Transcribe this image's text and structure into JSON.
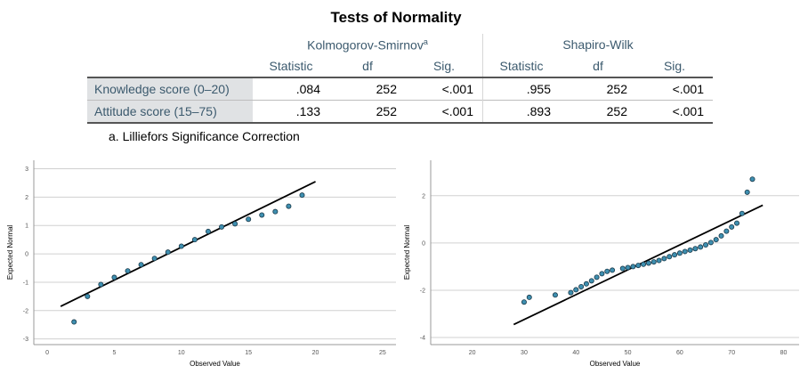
{
  "table": {
    "title": "Tests of Normality",
    "group1": "Kolmogorov-Smirnov",
    "group1_sup": "a",
    "group2": "Shapiro-Wilk",
    "col_headers": [
      "Statistic",
      "df",
      "Sig.",
      "Statistic",
      "df",
      "Sig."
    ],
    "rows": [
      {
        "label": "Knowledge score (0–20)",
        "values": [
          ".084",
          "252",
          "<.001",
          ".955",
          "252",
          "<.001"
        ]
      },
      {
        "label": "Attitude score (15–75)",
        "values": [
          ".133",
          "252",
          "<.001",
          ".893",
          "252",
          "<.001"
        ]
      }
    ],
    "footnote": "a. Lilliefors Significance Correction"
  },
  "chart_data": [
    {
      "type": "scatter",
      "xlabel": "Observed Value",
      "ylabel": "Expected Normal",
      "xlim": [
        -1,
        26
      ],
      "ylim": [
        -3.2,
        3.3
      ],
      "xticks": [
        0,
        5,
        10,
        15,
        20,
        25
      ],
      "yticks": [
        3,
        2,
        1,
        0,
        -1,
        -2,
        -3
      ],
      "grid": true,
      "points": [
        [
          2,
          -2.4
        ],
        [
          3,
          -1.5
        ],
        [
          4,
          -1.08
        ],
        [
          5,
          -0.83
        ],
        [
          6,
          -0.6
        ],
        [
          7,
          -0.38
        ],
        [
          8,
          -0.16
        ],
        [
          9,
          0.06
        ],
        [
          10,
          0.27
        ],
        [
          11,
          0.5
        ],
        [
          12,
          0.79
        ],
        [
          13,
          0.95
        ],
        [
          14,
          1.06
        ],
        [
          15,
          1.22
        ],
        [
          16,
          1.37
        ],
        [
          17,
          1.49
        ],
        [
          18,
          1.68
        ],
        [
          19,
          2.07
        ]
      ],
      "line": [
        [
          1,
          -1.85
        ],
        [
          20,
          2.55
        ]
      ],
      "point_color": "#3e8fb0"
    },
    {
      "type": "scatter",
      "xlabel": "Observed Value",
      "ylabel": "Expected Normal",
      "xlim": [
        12,
        83
      ],
      "ylim": [
        -4.3,
        3.5
      ],
      "xticks": [
        20,
        30,
        40,
        50,
        60,
        70,
        80
      ],
      "yticks": [
        2,
        0,
        -2,
        -4
      ],
      "grid": true,
      "points": [
        [
          30,
          -2.5
        ],
        [
          31,
          -2.3
        ],
        [
          36,
          -2.2
        ],
        [
          39,
          -2.1
        ],
        [
          40,
          -1.98
        ],
        [
          41,
          -1.85
        ],
        [
          42,
          -1.73
        ],
        [
          43,
          -1.6
        ],
        [
          44,
          -1.45
        ],
        [
          45,
          -1.3
        ],
        [
          46,
          -1.2
        ],
        [
          47,
          -1.15
        ],
        [
          49,
          -1.08
        ],
        [
          50,
          -1.04
        ],
        [
          51,
          -1.0
        ],
        [
          52,
          -0.95
        ],
        [
          53,
          -0.9
        ],
        [
          54,
          -0.85
        ],
        [
          55,
          -0.8
        ],
        [
          56,
          -0.74
        ],
        [
          57,
          -0.66
        ],
        [
          58,
          -0.58
        ],
        [
          59,
          -0.5
        ],
        [
          60,
          -0.43
        ],
        [
          61,
          -0.36
        ],
        [
          62,
          -0.3
        ],
        [
          63,
          -0.24
        ],
        [
          64,
          -0.17
        ],
        [
          65,
          -0.08
        ],
        [
          66,
          0.02
        ],
        [
          67,
          0.14
        ],
        [
          68,
          0.3
        ],
        [
          69,
          0.5
        ],
        [
          70,
          0.68
        ],
        [
          71,
          0.84
        ],
        [
          72,
          1.25
        ],
        [
          73,
          2.15
        ],
        [
          74,
          2.7
        ]
      ],
      "line": [
        [
          28,
          -3.45
        ],
        [
          76,
          1.6
        ]
      ],
      "point_color": "#3e8fb0"
    }
  ]
}
